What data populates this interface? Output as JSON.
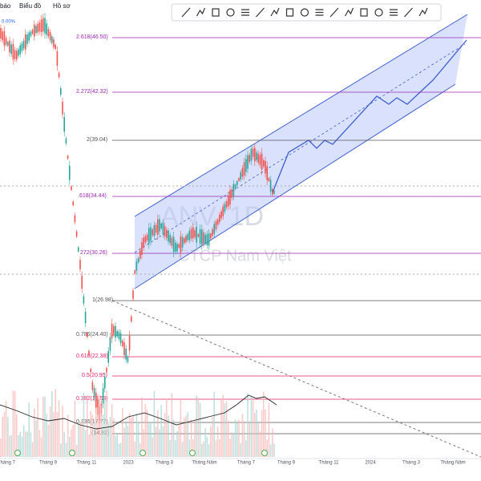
{
  "menu": [
    "báo",
    "Biểu đồ",
    "Hồ sơ"
  ],
  "percent_label": "0.00%",
  "fib_levels": [
    "2.618(46.50)",
    "2.272(42.32)",
    "2(39.04)",
    ".618(34.44)",
    "272(30.26)",
    "1(26.98)",
    "0.786(24.40)",
    "0.618(22.38)",
    "0.5(20.95)",
    "0.382(19.53)",
    "0.236(17.77)",
    "(14.92)"
  ],
  "watermark": {
    "symbol": "ANV, 1D",
    "company": "CTCP Nam Việt"
  },
  "time_axis": [
    "Tháng 7",
    "Tháng 9",
    "Tháng 11",
    "2023",
    "Tháng 3",
    "Tháng Năm",
    "Tháng 7",
    "Tháng 9",
    "Tháng 11",
    "2024",
    "Tháng 3",
    "Tháng Năm"
  ]
}
